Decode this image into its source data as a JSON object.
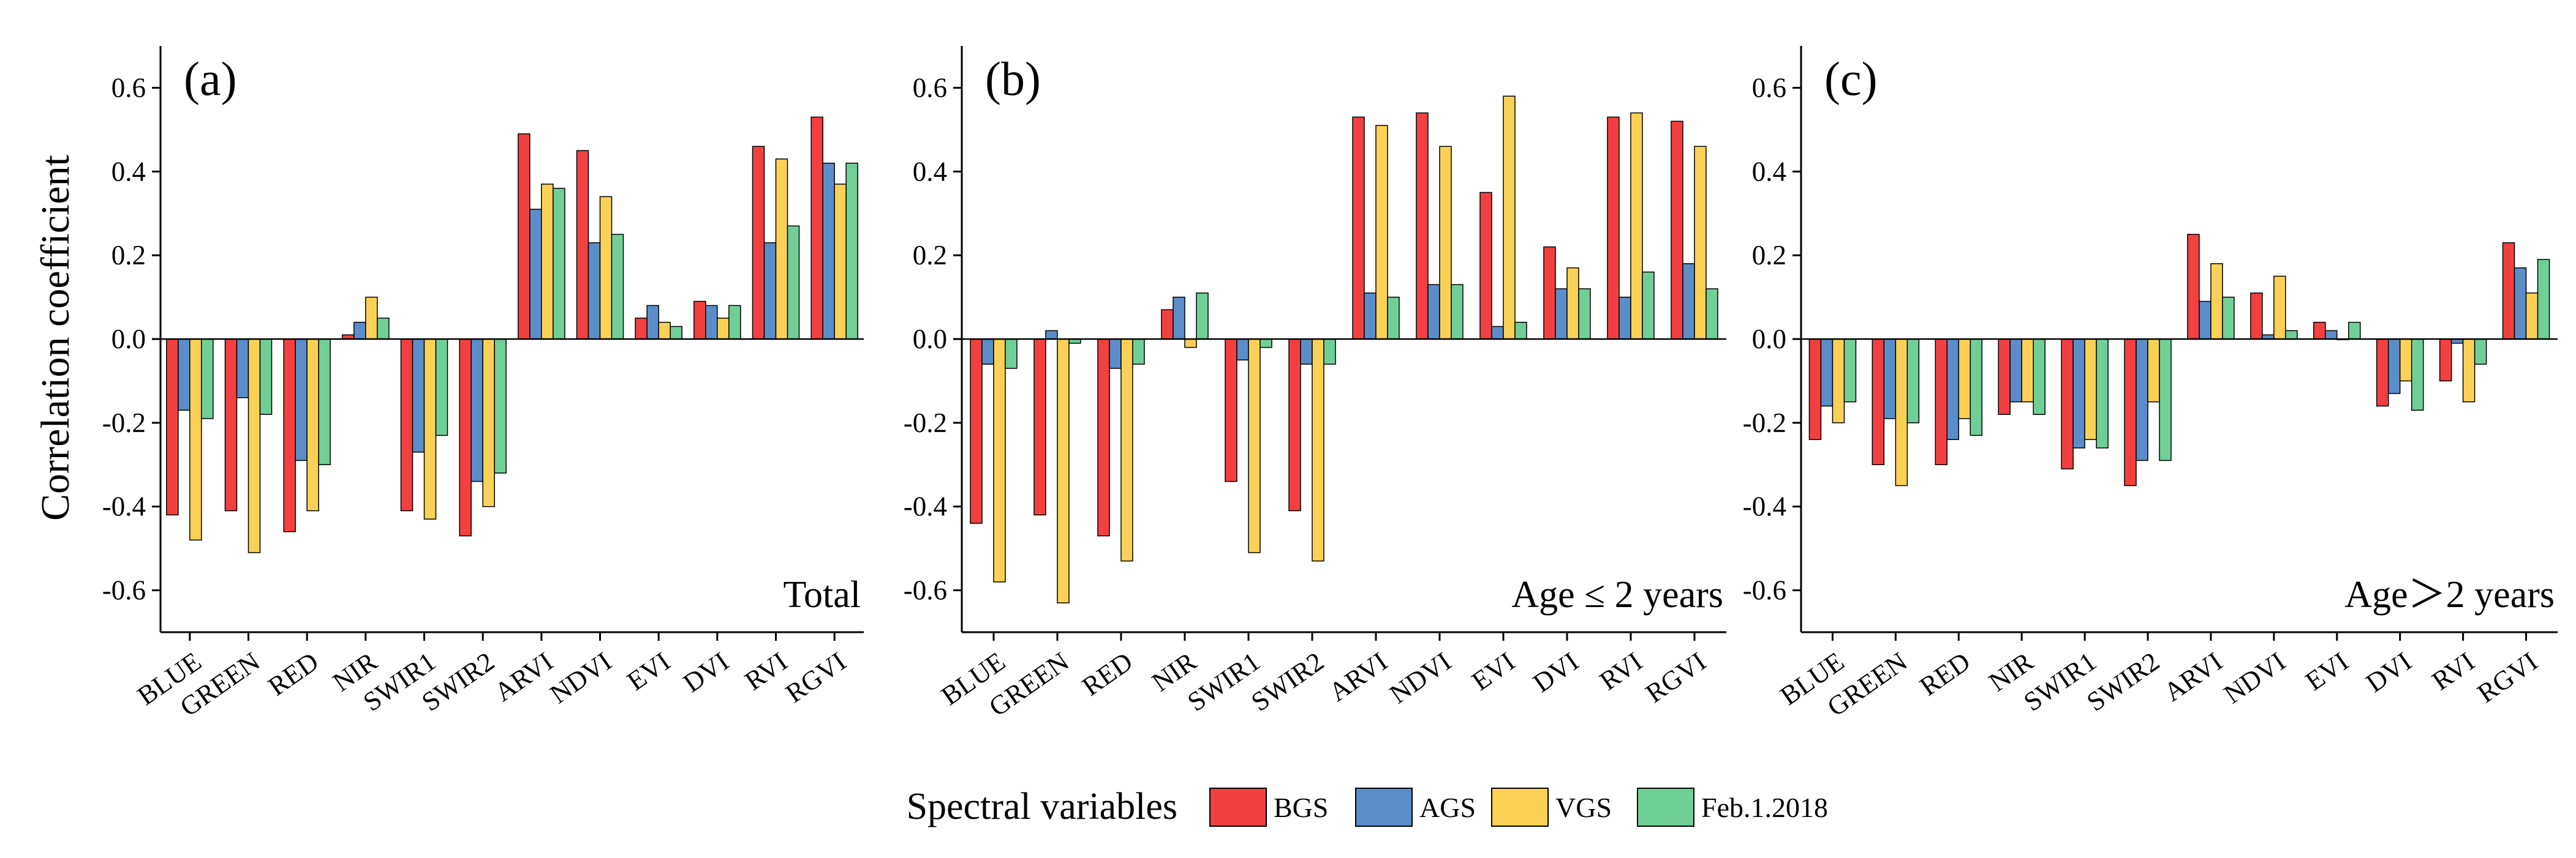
{
  "chart_data": {
    "type": "bar",
    "ylabel": "Correlation coefficient",
    "xlabel": "Spectral variables",
    "ylim": [
      -0.7,
      0.7
    ],
    "yticks": [
      -0.6,
      -0.4,
      -0.2,
      0.0,
      0.2,
      0.4,
      0.6
    ],
    "ytick_labels": [
      "-0.6",
      "-0.4",
      "-0.2",
      "0.0",
      "0.2",
      "0.4",
      "0.6"
    ],
    "categories": [
      "BLUE",
      "GREEN",
      "RED",
      "NIR",
      "SWIR1",
      "SWIR2",
      "ARVI",
      "NDVI",
      "EVI",
      "DVI",
      "RVI",
      "RGVI"
    ],
    "legend": [
      {
        "name": "BGS",
        "color": "#f24040"
      },
      {
        "name": "AGS",
        "color": "#5b8dc9"
      },
      {
        "name": "VGS",
        "color": "#fbd155"
      },
      {
        "name": "Feb.1.2018",
        "color": "#6fcf97"
      }
    ],
    "panels": [
      {
        "label": "(a)",
        "annotation": "Total",
        "series": [
          {
            "name": "BGS",
            "values": [
              -0.42,
              -0.41,
              -0.46,
              0.01,
              -0.41,
              -0.47,
              0.49,
              0.45,
              0.05,
              0.09,
              0.46,
              0.53
            ]
          },
          {
            "name": "AGS",
            "values": [
              -0.17,
              -0.14,
              -0.29,
              0.04,
              -0.27,
              -0.34,
              0.31,
              0.23,
              0.08,
              0.08,
              0.23,
              0.42
            ]
          },
          {
            "name": "VGS",
            "values": [
              -0.48,
              -0.51,
              -0.41,
              0.1,
              -0.43,
              -0.4,
              0.37,
              0.34,
              0.04,
              0.05,
              0.43,
              0.37
            ]
          },
          {
            "name": "Feb.1.2018",
            "values": [
              -0.19,
              -0.18,
              -0.3,
              0.05,
              -0.23,
              -0.32,
              0.36,
              0.25,
              0.03,
              0.08,
              0.27,
              0.42
            ]
          }
        ]
      },
      {
        "label": "(b)",
        "annotation": "Age ≤ 2 years",
        "series": [
          {
            "name": "BGS",
            "values": [
              -0.44,
              -0.42,
              -0.47,
              0.07,
              -0.34,
              -0.41,
              0.53,
              0.54,
              0.35,
              0.22,
              0.53,
              0.52
            ]
          },
          {
            "name": "AGS",
            "values": [
              -0.06,
              0.02,
              -0.07,
              0.1,
              -0.05,
              -0.06,
              0.11,
              0.13,
              0.03,
              0.12,
              0.1,
              0.18
            ]
          },
          {
            "name": "VGS",
            "values": [
              -0.58,
              -0.63,
              -0.53,
              -0.02,
              -0.51,
              -0.53,
              0.51,
              0.46,
              0.58,
              0.17,
              0.54,
              0.46
            ]
          },
          {
            "name": "Feb.1.2018",
            "values": [
              -0.07,
              -0.01,
              -0.06,
              0.11,
              -0.02,
              -0.06,
              0.1,
              0.13,
              0.04,
              0.12,
              0.16,
              0.12
            ]
          }
        ]
      },
      {
        "label": "(c)",
        "annotation": "Age＞2 years",
        "series": [
          {
            "name": "BGS",
            "values": [
              -0.24,
              -0.3,
              -0.3,
              -0.18,
              -0.31,
              -0.35,
              0.25,
              0.11,
              0.04,
              -0.16,
              -0.1,
              0.23
            ]
          },
          {
            "name": "AGS",
            "values": [
              -0.16,
              -0.19,
              -0.24,
              -0.15,
              -0.26,
              -0.29,
              0.09,
              0.01,
              0.02,
              -0.13,
              -0.01,
              0.17
            ]
          },
          {
            "name": "VGS",
            "values": [
              -0.2,
              -0.35,
              -0.19,
              -0.15,
              -0.24,
              -0.15,
              0.18,
              0.15,
              0.0,
              -0.1,
              -0.15,
              0.11
            ]
          },
          {
            "name": "Feb.1.2018",
            "values": [
              -0.15,
              -0.2,
              -0.23,
              -0.18,
              -0.26,
              -0.29,
              0.1,
              0.02,
              0.04,
              -0.17,
              -0.06,
              0.19
            ]
          }
        ]
      }
    ]
  }
}
